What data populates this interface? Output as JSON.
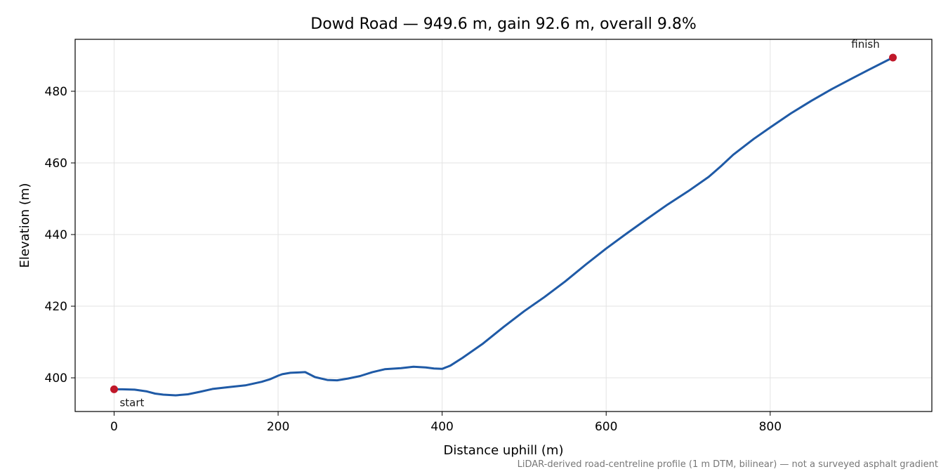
{
  "chart_data": {
    "type": "line",
    "title": "Dowd Road — 949.6 m, gain 92.6 m, overall 9.8%",
    "xlabel": "Distance uphill (m)",
    "ylabel": "Elevation (m)",
    "xlim": [
      -47.5,
      997.1
    ],
    "ylim": [
      390.6,
      494.5
    ],
    "x_ticks": [
      0,
      200,
      400,
      600,
      800
    ],
    "y_ticks": [
      400,
      420,
      440,
      460,
      480
    ],
    "grid": true,
    "series": [
      {
        "color": "#1f5aa6",
        "x": [
          0,
          10,
          25,
          40,
          50,
          60,
          75,
          90,
          105,
          120,
          140,
          160,
          180,
          190,
          200,
          205,
          215,
          225,
          233,
          245,
          260,
          272,
          285,
          300,
          315,
          330,
          350,
          365,
          380,
          390,
          400,
          410,
          425,
          450,
          475,
          500,
          525,
          550,
          575,
          600,
          625,
          650,
          675,
          700,
          725,
          740,
          755,
          780,
          800,
          825,
          850,
          875,
          900,
          920,
          940,
          949.6
        ],
        "y": [
          396.8,
          396.8,
          396.7,
          396.2,
          395.6,
          395.3,
          395.1,
          395.4,
          396.1,
          396.9,
          397.4,
          397.9,
          398.9,
          399.6,
          400.6,
          401.0,
          401.4,
          401.5,
          401.6,
          400.2,
          399.4,
          399.3,
          399.8,
          400.5,
          401.6,
          402.4,
          402.7,
          403.1,
          402.9,
          402.6,
          402.5,
          403.4,
          405.6,
          409.6,
          414.2,
          418.6,
          422.6,
          426.9,
          431.6,
          436.1,
          440.3,
          444.4,
          448.4,
          452.1,
          456.1,
          459.1,
          462.3,
          466.7,
          469.9,
          473.8,
          477.3,
          480.6,
          483.6,
          486.0,
          488.3,
          489.4
        ]
      }
    ],
    "annotations": {
      "start_label": "start",
      "finish_label": "finish",
      "start_point": {
        "x": 0,
        "y": 396.8
      },
      "finish_point": {
        "x": 949.6,
        "y": 489.4
      },
      "marker_color": "#c0182a"
    },
    "footnote": "LiDAR-derived road-centreline profile (1 m DTM, bilinear) — not a surveyed asphalt gradient"
  }
}
